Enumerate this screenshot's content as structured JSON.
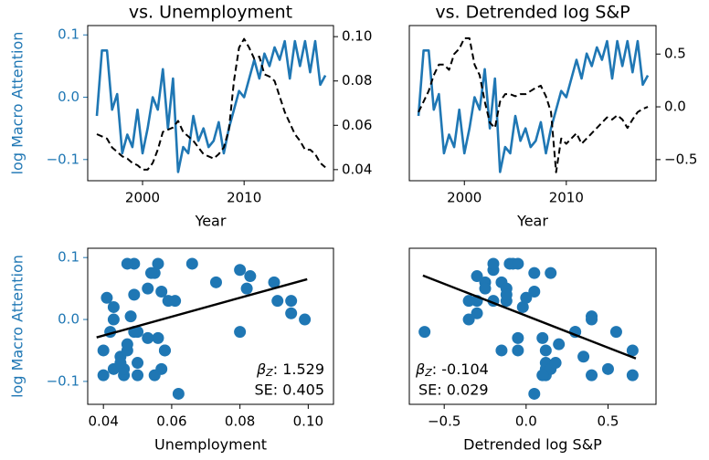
{
  "chart_data": [
    {
      "type": "line",
      "title": "vs. Unemployment",
      "xlabel": "Year",
      "ylabel": "log Macro Attention",
      "yaxis_color": "#1f77b4",
      "x": [
        1995.5,
        1996,
        1996.5,
        1997,
        1997.5,
        1998,
        1998.5,
        1999,
        1999.5,
        2000,
        2000.5,
        2001,
        2001.5,
        2002,
        2002.5,
        2003,
        2003.5,
        2004,
        2004.5,
        2005,
        2005.5,
        2006,
        2006.5,
        2007,
        2007.5,
        2008,
        2008.5,
        2009,
        2009.5,
        2010,
        2010.5,
        2011,
        2011.5,
        2012,
        2012.5,
        2013,
        2013.5,
        2014,
        2014.5,
        2015,
        2015.5,
        2016,
        2016.5,
        2017,
        2017.5,
        2018
      ],
      "series": [
        {
          "color": "#1f77b4",
          "linestyle": "solid",
          "axis": "y",
          "values": [
            -0.03,
            0.075,
            0.075,
            -0.02,
            0.005,
            -0.09,
            -0.06,
            -0.08,
            -0.02,
            -0.09,
            -0.05,
            0.0,
            -0.02,
            0.045,
            -0.05,
            0.03,
            -0.12,
            -0.08,
            -0.09,
            -0.03,
            -0.07,
            -0.05,
            -0.08,
            -0.07,
            -0.04,
            -0.09,
            -0.05,
            -0.02,
            0.01,
            0.0,
            0.03,
            0.06,
            0.03,
            0.07,
            0.05,
            0.08,
            0.06,
            0.09,
            0.03,
            0.09,
            0.05,
            0.09,
            0.04,
            0.09,
            0.02,
            0.035
          ]
        },
        {
          "color": "#000000",
          "linestyle": "dashed",
          "axis": "y2",
          "values": [
            0.056,
            0.055,
            0.054,
            0.05,
            0.048,
            0.046,
            0.045,
            0.043,
            0.042,
            0.04,
            0.04,
            0.043,
            0.049,
            0.057,
            0.058,
            0.059,
            0.062,
            0.057,
            0.055,
            0.053,
            0.05,
            0.047,
            0.046,
            0.045,
            0.047,
            0.05,
            0.058,
            0.08,
            0.095,
            0.099,
            0.095,
            0.09,
            0.091,
            0.083,
            0.082,
            0.08,
            0.073,
            0.066,
            0.061,
            0.056,
            0.053,
            0.049,
            0.049,
            0.047,
            0.043,
            0.041
          ]
        }
      ],
      "xlim": [
        1994.6,
        2018.8
      ],
      "xticks": [
        2000,
        2010
      ],
      "ylim": [
        -0.134,
        0.115
      ],
      "yticks": [
        {
          "value": -0.1,
          "label": "−0.1"
        },
        {
          "value": 0,
          "label": "0.0"
        },
        0.1
      ],
      "y2lim": [
        0.035,
        0.105
      ],
      "y2ticks": [
        0.04,
        0.06,
        0.08,
        {
          "value": 0.1,
          "label": "0.10"
        }
      ]
    },
    {
      "type": "line",
      "title": "vs. Detrended log S&P",
      "xlabel": "Year",
      "x": [
        1995.5,
        1996,
        1996.5,
        1997,
        1997.5,
        1998,
        1998.5,
        1999,
        1999.5,
        2000,
        2000.5,
        2001,
        2001.5,
        2002,
        2002.5,
        2003,
        2003.5,
        2004,
        2004.5,
        2005,
        2005.5,
        2006,
        2006.5,
        2007,
        2007.5,
        2008,
        2008.5,
        2009,
        2009.5,
        2010,
        2010.5,
        2011,
        2011.5,
        2012,
        2012.5,
        2013,
        2013.5,
        2014,
        2014.5,
        2015,
        2015.5,
        2016,
        2016.5,
        2017,
        2017.5,
        2018
      ],
      "series": [
        {
          "color": "#1f77b4",
          "linestyle": "solid",
          "axis": "y",
          "values": [
            -0.03,
            0.075,
            0.075,
            -0.02,
            0.005,
            -0.09,
            -0.06,
            -0.08,
            -0.02,
            -0.09,
            -0.05,
            0.0,
            -0.02,
            0.045,
            -0.05,
            0.03,
            -0.12,
            -0.08,
            -0.09,
            -0.03,
            -0.07,
            -0.05,
            -0.08,
            -0.07,
            -0.04,
            -0.09,
            -0.05,
            -0.02,
            0.01,
            0.0,
            0.03,
            0.06,
            0.03,
            0.07,
            0.05,
            0.08,
            0.06,
            0.09,
            0.03,
            0.09,
            0.05,
            0.09,
            0.04,
            0.09,
            0.02,
            0.035
          ]
        },
        {
          "color": "#000000",
          "linestyle": "dashed",
          "axis": "y2",
          "values": [
            -0.05,
            0.05,
            0.15,
            0.3,
            0.4,
            0.4,
            0.35,
            0.5,
            0.55,
            0.65,
            0.65,
            0.4,
            0.3,
            0.05,
            -0.15,
            -0.2,
            0.05,
            0.12,
            0.12,
            0.1,
            0.12,
            0.12,
            0.15,
            0.18,
            0.2,
            0.1,
            -0.05,
            -0.62,
            -0.3,
            -0.35,
            -0.3,
            -0.25,
            -0.35,
            -0.3,
            -0.25,
            -0.2,
            -0.15,
            -0.1,
            -0.12,
            -0.08,
            -0.12,
            -0.2,
            -0.12,
            -0.05,
            -0.02,
            0.0
          ]
        }
      ],
      "xlim": [
        1994.6,
        2018.8
      ],
      "xticks": [
        2000,
        2010
      ],
      "ylim": [
        -0.134,
        0.115
      ],
      "y2lim": [
        -0.7,
        0.77
      ],
      "y2ticks": [
        {
          "value": -0.5,
          "label": "−0.5"
        },
        {
          "value": 0,
          "label": "0.0"
        },
        0.5
      ]
    },
    {
      "type": "scatter",
      "xlabel": "Unemployment",
      "ylabel": "log Macro Attention",
      "yaxis_color": "#1f77b4",
      "color": "#1f77b4",
      "x": [
        0.056,
        0.055,
        0.054,
        0.05,
        0.048,
        0.046,
        0.045,
        0.043,
        0.042,
        0.04,
        0.04,
        0.043,
        0.049,
        0.057,
        0.058,
        0.059,
        0.062,
        0.057,
        0.055,
        0.053,
        0.05,
        0.047,
        0.046,
        0.045,
        0.047,
        0.05,
        0.058,
        0.08,
        0.095,
        0.099,
        0.095,
        0.09,
        0.091,
        0.083,
        0.082,
        0.08,
        0.073,
        0.066,
        0.061,
        0.056,
        0.053,
        0.049,
        0.049,
        0.047,
        0.043,
        0.041
      ],
      "values": [
        -0.03,
        0.075,
        0.075,
        -0.02,
        0.005,
        -0.09,
        -0.06,
        -0.08,
        -0.02,
        -0.09,
        -0.05,
        0.0,
        -0.02,
        0.045,
        -0.05,
        0.03,
        -0.12,
        -0.08,
        -0.09,
        -0.03,
        -0.07,
        -0.05,
        -0.08,
        -0.07,
        -0.04,
        -0.09,
        -0.05,
        -0.02,
        0.01,
        0.0,
        0.03,
        0.06,
        0.03,
        0.07,
        0.05,
        0.08,
        0.06,
        0.09,
        0.03,
        0.09,
        0.05,
        0.09,
        0.04,
        0.09,
        0.02,
        0.035
      ],
      "fit": {
        "color": "#000000",
        "x": [
          0.038,
          0.0997
        ],
        "values": [
          -0.029,
          0.065
        ]
      },
      "annotation": {
        "loc": "lower right",
        "symbol": "β",
        "subscript": "Z",
        "text": ": 1.529",
        "se": "SE: 0.405"
      },
      "xlim": [
        0.0354,
        0.1074
      ],
      "xticks": [
        0.04,
        0.06,
        0.08,
        {
          "value": 0.1,
          "label": "0.10"
        }
      ],
      "ylim": [
        -0.137,
        0.115
      ],
      "yticks": [
        {
          "value": -0.1,
          "label": "−0.1"
        },
        {
          "value": 0,
          "label": "0.0"
        },
        0.1
      ]
    },
    {
      "type": "scatter",
      "xlabel": "Detrended log S&P",
      "color": "#1f77b4",
      "x": [
        -0.05,
        0.05,
        0.15,
        0.3,
        0.4,
        0.4,
        0.35,
        0.5,
        0.55,
        0.65,
        0.65,
        0.4,
        0.3,
        0.05,
        -0.15,
        -0.2,
        0.05,
        0.12,
        0.12,
        0.1,
        0.12,
        0.12,
        0.15,
        0.18,
        0.2,
        0.1,
        -0.05,
        -0.62,
        -0.3,
        -0.35,
        -0.3,
        -0.25,
        -0.35,
        -0.3,
        -0.25,
        -0.2,
        -0.15,
        -0.1,
        -0.12,
        -0.08,
        -0.12,
        -0.2,
        -0.12,
        -0.05,
        -0.02,
        0.0
      ],
      "values": [
        -0.03,
        0.075,
        0.075,
        -0.02,
        0.005,
        -0.09,
        -0.06,
        -0.08,
        -0.02,
        -0.09,
        -0.05,
        0.0,
        -0.02,
        0.045,
        -0.05,
        0.03,
        -0.12,
        -0.08,
        -0.09,
        -0.03,
        -0.07,
        -0.05,
        -0.08,
        -0.07,
        -0.04,
        -0.09,
        -0.05,
        -0.02,
        0.01,
        0.0,
        0.03,
        0.06,
        0.03,
        0.07,
        0.05,
        0.08,
        0.06,
        0.09,
        0.03,
        0.09,
        0.05,
        0.09,
        0.04,
        0.09,
        0.02,
        0.035
      ],
      "fit": {
        "color": "#000000",
        "x": [
          -0.63,
          0.67
        ],
        "values": [
          0.071,
          -0.063
        ]
      },
      "annotation": {
        "loc": "lower left",
        "symbol": "β",
        "subscript": "Z",
        "text": ": -0.104",
        "se": "SE: 0.029"
      },
      "xlim": [
        -0.713,
        0.793
      ],
      "xticks": [
        {
          "value": -0.5,
          "label": "−0.5"
        },
        {
          "value": 0,
          "label": "0.0"
        },
        0.5
      ],
      "ylim": [
        -0.137,
        0.115
      ]
    }
  ]
}
